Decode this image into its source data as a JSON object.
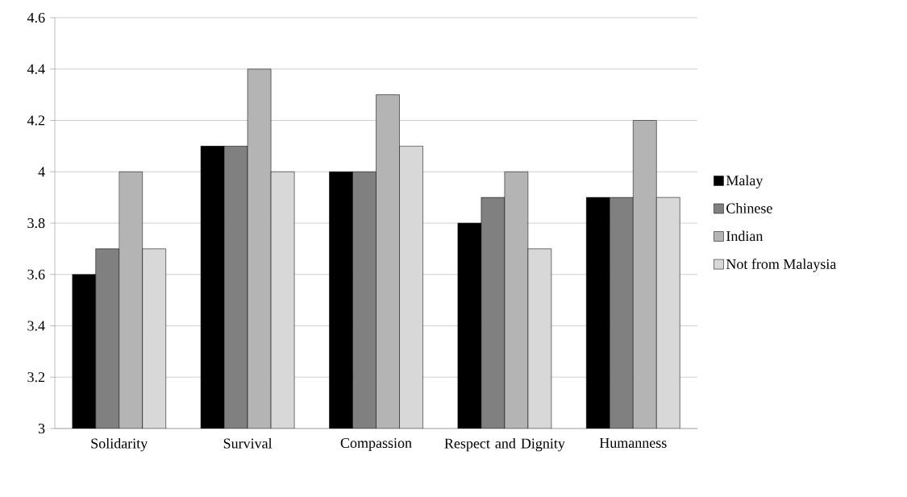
{
  "chart_data": {
    "type": "bar",
    "categories": [
      "Solidarity",
      "Survival",
      "Compassion",
      "Respect and Dignity",
      "Humanness"
    ],
    "series": [
      {
        "name": "Malay",
        "color": "#000000",
        "values": [
          3.6,
          4.1,
          4.0,
          3.8,
          3.9
        ]
      },
      {
        "name": "Chinese",
        "color": "#808080",
        "values": [
          3.7,
          4.1,
          4.0,
          3.9,
          3.9
        ]
      },
      {
        "name": "Indian",
        "color": "#b4b4b4",
        "values": [
          4.0,
          4.4,
          4.3,
          4.0,
          4.2
        ]
      },
      {
        "name": "Not from Malaysia",
        "color": "#d8d8d8",
        "values": [
          3.7,
          4.0,
          4.1,
          3.7,
          3.9
        ]
      }
    ],
    "ylim": [
      3,
      4.6
    ],
    "yticks": [
      3,
      3.2,
      3.4,
      3.6,
      3.8,
      4,
      4.2,
      4.4,
      4.6
    ],
    "grid": "y",
    "legend": "right"
  }
}
